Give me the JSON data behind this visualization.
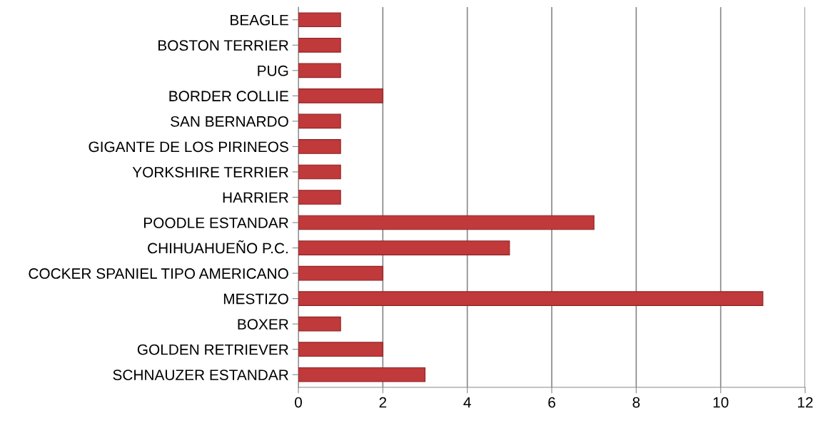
{
  "chart_data": {
    "type": "bar",
    "orientation": "horizontal",
    "categories": [
      "BEAGLE",
      "BOSTON TERRIER",
      "PUG",
      "BORDER COLLIE",
      "SAN BERNARDO",
      "GIGANTE DE LOS PIRINEOS",
      "YORKSHIRE TERRIER",
      "HARRIER",
      "POODLE ESTANDAR",
      "CHIHUAHUEÑO P.C.",
      "COCKER SPANIEL TIPO AMERICANO",
      "MESTIZO",
      "BOXER",
      "GOLDEN RETRIEVER",
      "SCHNAUZER ESTANDAR"
    ],
    "values": [
      1,
      1,
      1,
      2,
      1,
      1,
      1,
      1,
      7,
      5,
      2,
      11,
      1,
      2,
      3
    ],
    "color": "#c0393b",
    "xlim": [
      0,
      12
    ],
    "xticks": [
      0,
      2,
      4,
      6,
      8,
      10,
      12
    ],
    "grid": "x"
  }
}
